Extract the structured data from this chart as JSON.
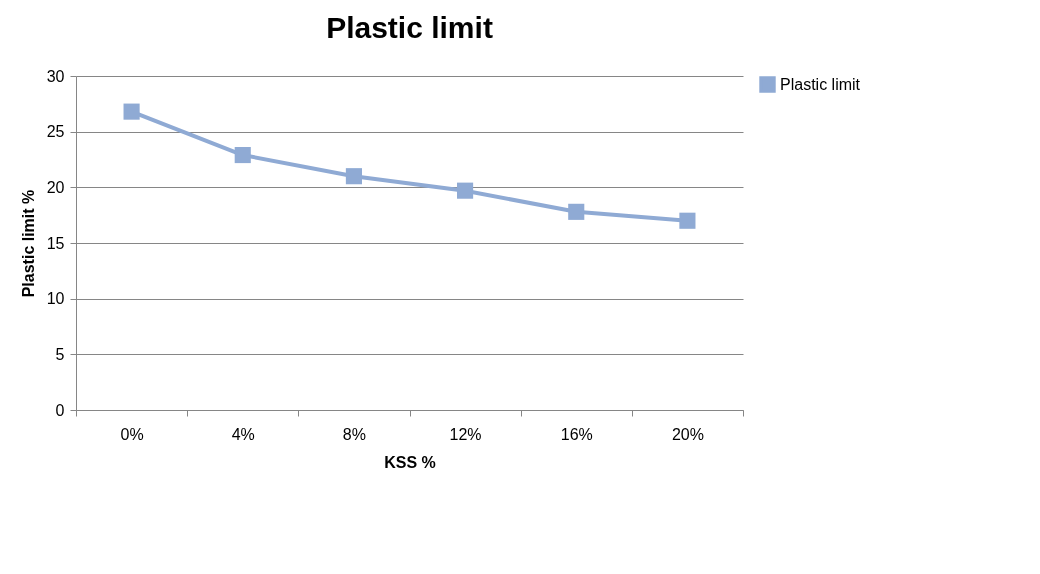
{
  "chart_data": {
    "type": "line",
    "title": "Plastic limit",
    "xlabel": "KSS %",
    "ylabel": "Plastic limit %",
    "categories": [
      "0%",
      "4%",
      "8%",
      "12%",
      "16%",
      "20%"
    ],
    "series": [
      {
        "name": "Plastic limit",
        "color": "#8faad4",
        "values": [
          26.8,
          22.9,
          21.0,
          19.7,
          17.8,
          17.0
        ]
      }
    ],
    "ylim": [
      0,
      30
    ],
    "yticks": [
      0,
      5,
      10,
      15,
      20,
      25,
      30
    ],
    "grid": "y",
    "legend": "right",
    "marker": "square",
    "line_style": "solid"
  }
}
